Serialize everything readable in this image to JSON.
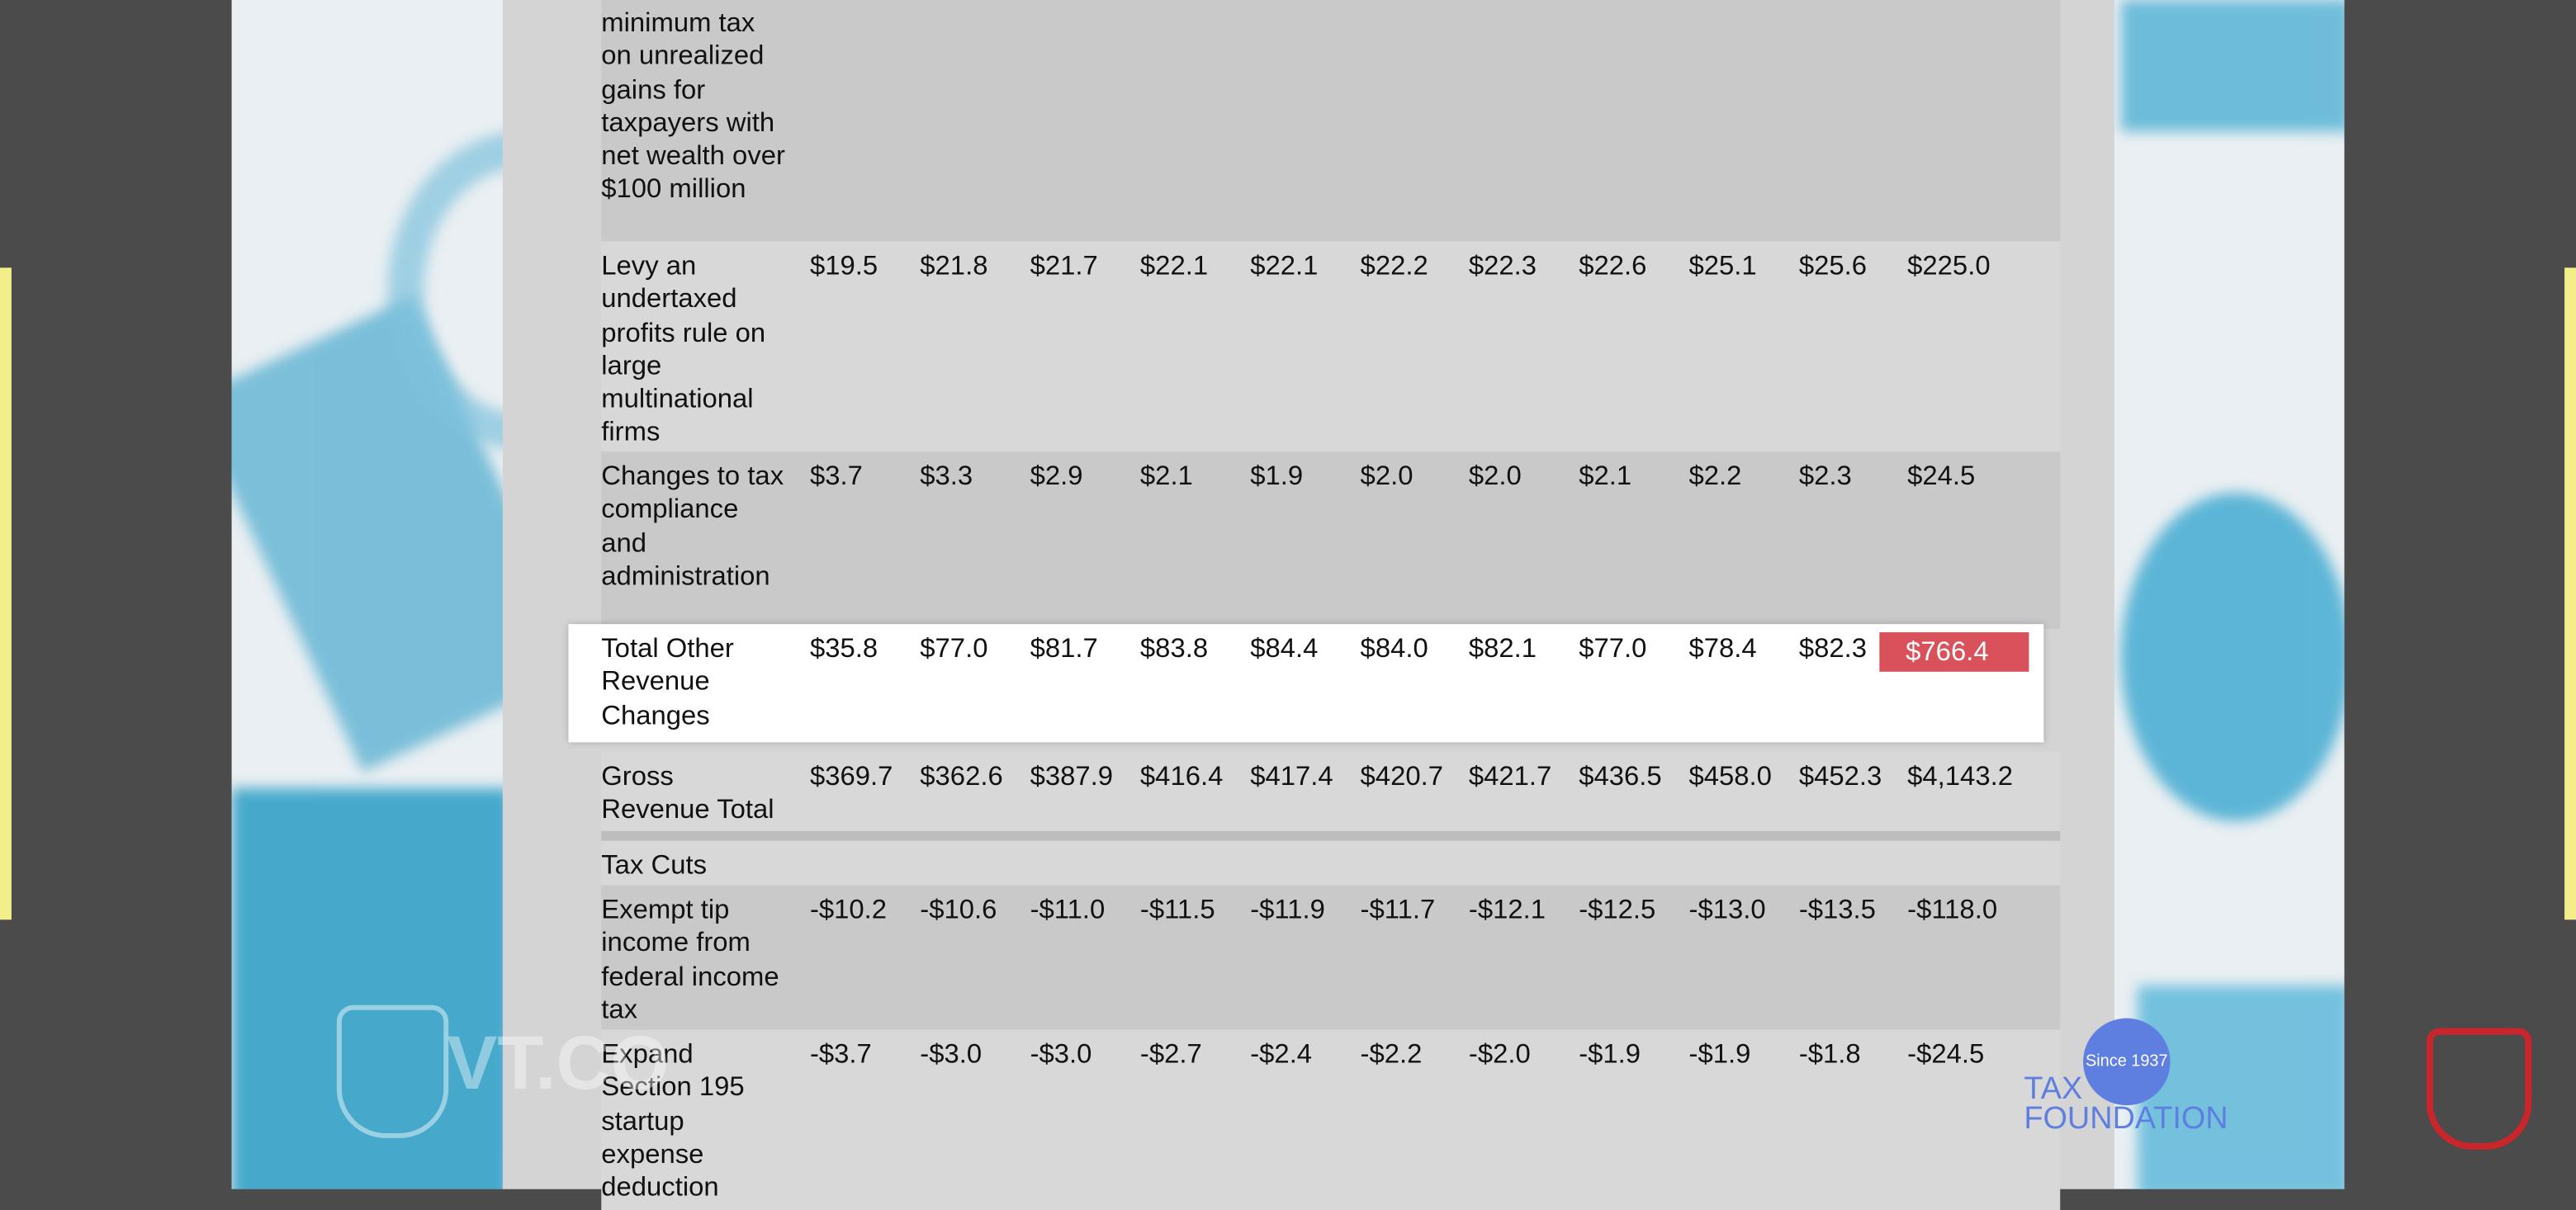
{
  "table": {
    "rows": [
      {
        "label": "minimum tax on unrealized gains for taxpayers with net wealth over $100 million",
        "values": []
      },
      {
        "label": "Levy an undertaxed profits rule on large multinational firms",
        "values": [
          "$19.5",
          "$21.8",
          "$21.7",
          "$22.1",
          "$22.1",
          "$22.2",
          "$22.3",
          "$22.6",
          "$25.1",
          "$25.6",
          "$225.0"
        ]
      },
      {
        "label": "Changes to tax compliance and administration",
        "values": [
          "$3.7",
          "$3.3",
          "$2.9",
          "$2.1",
          "$1.9",
          "$2.0",
          "$2.0",
          "$2.1",
          "$2.2",
          "$2.3",
          "$24.5"
        ]
      },
      {
        "label": "Total Other Revenue Changes",
        "values": [
          "$35.8",
          "$77.0",
          "$81.7",
          "$83.8",
          "$84.4",
          "$84.0",
          "$82.1",
          "$77.0",
          "$78.4",
          "$82.3",
          "$766.4"
        ]
      },
      {
        "label": "Gross Revenue Total",
        "values": [
          "$369.7",
          "$362.6",
          "$387.9",
          "$416.4",
          "$417.4",
          "$420.7",
          "$421.7",
          "$436.5",
          "$458.0",
          "$452.3",
          "$4,143.2"
        ]
      },
      {
        "label": "Tax Cuts",
        "values": []
      },
      {
        "label": "Exempt tip income from federal income tax",
        "values": [
          "-$10.2",
          "-$10.6",
          "-$11.0",
          "-$11.5",
          "-$11.9",
          "-$11.7",
          "-$12.1",
          "-$12.5",
          "-$13.0",
          "-$13.5",
          "-$118.0"
        ]
      },
      {
        "label": "Expand Section 195 startup expense deduction",
        "values": [
          "-$3.7",
          "-$3.0",
          "-$3.0",
          "-$2.7",
          "-$2.4",
          "-$2.2",
          "-$2.0",
          "-$1.9",
          "-$1.9",
          "-$1.8",
          "-$24.5"
        ]
      }
    ]
  },
  "watermark": {
    "left": "VT.CO",
    "since": "Since 1937",
    "brand_line1": "TAX",
    "brand_line2": "FOUNDATION"
  }
}
